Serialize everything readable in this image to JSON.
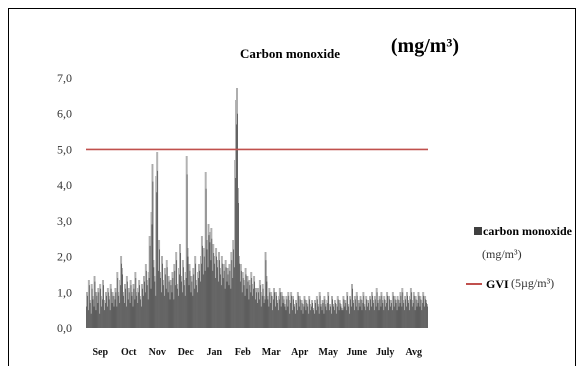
{
  "chart_data": {
    "type": "bar",
    "title": "Carbon monoxide",
    "unit_label": "(mg/m³)",
    "ylim": [
      0,
      7
    ],
    "y_ticks": [
      "0,0",
      "1,0",
      "2,0",
      "3,0",
      "4,0",
      "5,0",
      "6,0",
      "7,0"
    ],
    "y_tick_values": [
      0,
      1,
      2,
      3,
      4,
      5,
      6,
      7
    ],
    "months": [
      "Sep",
      "Oct",
      "Nov",
      "Dec",
      "Jan",
      "Feb",
      "Mar",
      "Apr",
      "May",
      "June",
      "July",
      "Avg"
    ],
    "days_per_month": 30,
    "reference_line": {
      "name": "GVI (5µg/m³)",
      "value": 5.0,
      "color": "#c0504d"
    },
    "series": [
      {
        "name": "carbon monoxide (mg/m³)",
        "color": "#3f3f3f",
        "color_light": "#a6a6a6",
        "values": [
          0.6,
          0.9,
          0.5,
          1.2,
          0.7,
          0.4,
          1.1,
          0.8,
          0.6,
          1.3,
          0.5,
          0.9,
          0.7,
          1.0,
          0.4,
          1.1,
          0.6,
          0.8,
          1.2,
          0.5,
          0.7,
          0.9,
          0.6,
          1.0,
          0.8,
          0.5,
          1.1,
          0.7,
          0.9,
          0.6,
          0.8,
          1.0,
          0.6,
          1.4,
          0.9,
          0.7,
          1.2,
          1.8,
          1.5,
          0.9,
          0.7,
          1.1,
          0.6,
          1.3,
          0.8,
          1.0,
          0.7,
          1.2,
          0.9,
          0.6,
          1.1,
          0.8,
          1.4,
          0.9,
          0.7,
          1.0,
          1.2,
          0.8,
          0.6,
          1.1,
          0.9,
          1.3,
          1.0,
          1.6,
          1.2,
          0.8,
          1.4,
          2.3,
          1.1,
          2.9,
          4.1,
          1.7,
          1.3,
          0.9,
          3.8,
          4.4,
          1.6,
          2.2,
          1.4,
          1.0,
          1.8,
          1.2,
          0.9,
          1.5,
          1.1,
          1.7,
          1.0,
          1.3,
          0.8,
          1.2,
          1.0,
          1.4,
          0.8,
          1.6,
          1.2,
          1.9,
          1.1,
          0.9,
          1.5,
          2.1,
          1.3,
          1.0,
          1.7,
          1.2,
          0.9,
          1.4,
          4.3,
          2.0,
          1.2,
          1.6,
          1.0,
          1.3,
          0.9,
          1.5,
          1.1,
          1.8,
          1.2,
          1.0,
          1.4,
          1.6,
          1.3,
          1.8,
          2.3,
          1.5,
          2.0,
          1.6,
          3.9,
          2.2,
          1.7,
          2.6,
          2.4,
          1.9,
          2.5,
          1.6,
          2.1,
          1.8,
          1.4,
          2.0,
          1.7,
          1.3,
          1.9,
          1.5,
          1.2,
          1.8,
          1.4,
          1.6,
          1.1,
          1.7,
          1.3,
          1.5,
          1.2,
          1.6,
          1.1,
          1.9,
          1.4,
          2.2,
          1.7,
          4.2,
          5.7,
          6.0,
          3.5,
          1.8,
          1.3,
          1.6,
          1.0,
          1.4,
          1.2,
          0.9,
          1.5,
          1.1,
          1.3,
          0.8,
          1.2,
          1.0,
          1.4,
          0.9,
          1.1,
          1.3,
          0.8,
          1.0,
          0.7,
          1.0,
          0.8,
          1.2,
          0.6,
          0.9,
          1.1,
          0.7,
          0.8,
          1.9,
          1.3,
          0.8,
          0.6,
          1.0,
          0.7,
          0.9,
          0.5,
          0.8,
          1.0,
          0.6,
          0.9,
          0.7,
          0.5,
          0.8,
          1.0,
          0.6,
          0.9,
          0.7,
          0.8,
          0.6,
          0.5,
          0.8,
          0.6,
          0.9,
          0.4,
          0.7,
          0.9,
          0.5,
          0.8,
          0.6,
          0.4,
          0.7,
          0.5,
          0.9,
          0.6,
          0.8,
          0.5,
          0.7,
          0.4,
          0.6,
          0.8,
          0.5,
          0.7,
          0.6,
          0.4,
          0.8,
          0.5,
          0.6,
          0.7,
          0.5,
          0.4,
          0.7,
          0.5,
          0.8,
          0.6,
          0.4,
          0.9,
          0.6,
          0.5,
          0.7,
          0.4,
          0.8,
          0.6,
          0.5,
          0.7,
          0.9,
          0.5,
          0.6,
          0.4,
          0.8,
          0.6,
          0.5,
          0.7,
          0.4,
          0.6,
          0.8,
          0.5,
          0.7,
          0.6,
          0.5,
          0.5,
          0.8,
          0.6,
          0.7,
          0.5,
          0.9,
          0.6,
          0.4,
          0.8,
          0.6,
          1.1,
          0.7,
          0.5,
          0.8,
          0.6,
          0.9,
          0.5,
          0.7,
          0.6,
          0.8,
          0.5,
          0.7,
          0.9,
          0.6,
          0.5,
          0.8,
          0.6,
          0.7,
          0.5,
          0.8,
          0.6,
          0.9,
          0.7,
          0.5,
          0.8,
          0.6,
          1.0,
          0.7,
          0.5,
          0.8,
          0.6,
          0.9,
          0.7,
          0.5,
          0.8,
          0.6,
          0.7,
          0.9,
          0.5,
          0.8,
          0.6,
          0.7,
          0.5,
          0.9,
          0.6,
          0.8,
          0.7,
          0.5,
          0.8,
          0.6,
          0.7,
          0.9,
          0.6,
          1.0,
          0.7,
          0.5,
          0.8,
          0.6,
          0.9,
          0.7,
          0.5,
          0.8,
          1.0,
          0.6,
          0.7,
          0.9,
          0.5,
          0.8,
          0.6,
          0.7,
          0.9,
          0.6,
          0.8,
          0.5,
          0.7,
          0.9,
          0.6,
          0.8,
          0.7,
          0.6
        ]
      }
    ],
    "legend": {
      "position": "right",
      "series_label": "carbon monoxide",
      "series_unit": "(mg/m³)",
      "line_label": "GVI",
      "line_unit": "(5µg/m³)"
    }
  }
}
